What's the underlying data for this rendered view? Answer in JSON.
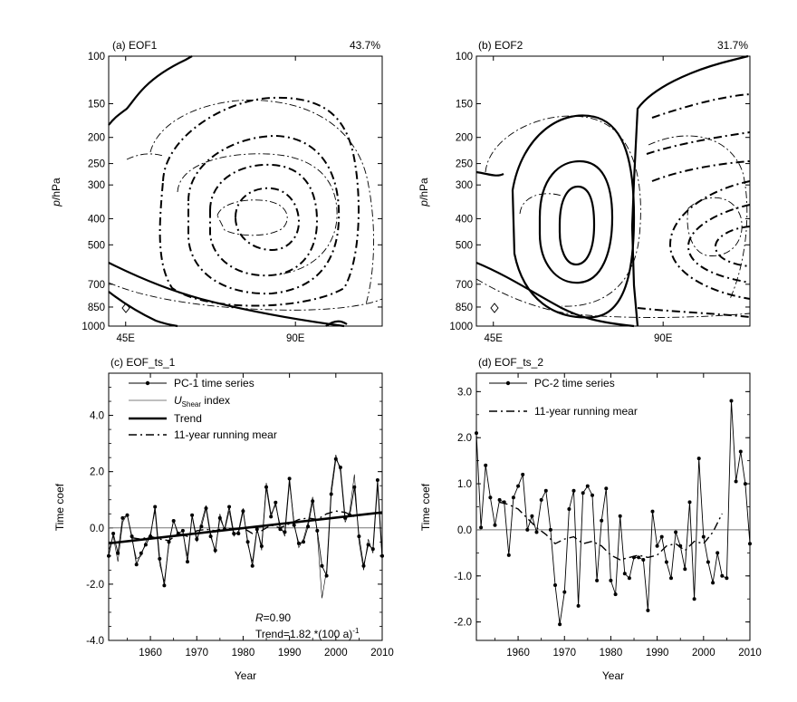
{
  "figure": {
    "panels": {
      "a": {
        "label": "(a)  EOF1",
        "percent": "43.7%",
        "ylabel": "p/hPa"
      },
      "b": {
        "label": "(b)  EOF2",
        "percent": "31.7%",
        "ylabel": "p/hPa"
      },
      "c": {
        "label": "(c)  EOF_ts_1",
        "ylabel": "Time coef",
        "xlabel": "Year",
        "legend": [
          "PC-1 time series",
          "U",
          "Shear",
          " index",
          "Trend",
          "11-year running mear"
        ],
        "ann_r_italic": "R",
        "ann_r_value": "=0.90",
        "ann_trend": "Trend=1.82 *(100 a)",
        "ann_trend_exp": "-1"
      },
      "d": {
        "label": "(d)  EOF_ts_2",
        "ylabel": "Time coef",
        "xlabel": "Year",
        "legend": [
          "PC-2 time series",
          "11-year running mear"
        ]
      }
    }
  },
  "chart_data": [
    {
      "type": "contour",
      "panel": "a",
      "title": "(a)  EOF1",
      "explained_variance": "43.7%",
      "ylabel": "p/hPa",
      "y_scale": "log-pressure",
      "y_ticks": [
        "100",
        "150",
        "200",
        "250",
        "300",
        "400",
        "500",
        "700",
        "850",
        "1000"
      ],
      "x_ticks": [
        "45E",
        "90E"
      ],
      "line_styles": [
        "solid (positive)",
        "dashed (negative)"
      ]
    },
    {
      "type": "contour",
      "panel": "b",
      "title": "(b)  EOF2",
      "explained_variance": "31.7%",
      "ylabel": "p/hPa",
      "y_scale": "log-pressure",
      "y_ticks": [
        "100",
        "150",
        "200",
        "250",
        "300",
        "400",
        "500",
        "700",
        "850",
        "1000"
      ],
      "x_ticks": [
        "45E",
        "90E"
      ],
      "line_styles": [
        "solid (positive)",
        "dashed (negative)"
      ]
    },
    {
      "type": "line",
      "panel": "c",
      "title": "(c)  EOF_ts_1",
      "xlabel": "Year",
      "ylabel": "Time coef",
      "xlim": [
        1951,
        2010
      ],
      "ylim": [
        -4.0,
        5.5
      ],
      "x_ticks": [
        "1960",
        "1970",
        "1980",
        "1990",
        "2000",
        "2010"
      ],
      "y_ticks": [
        "-4.0",
        "-2.0",
        "0.0",
        "2.0",
        "4.0"
      ],
      "x": [
        1951,
        1952,
        1953,
        1954,
        1955,
        1956,
        1957,
        1958,
        1959,
        1960,
        1961,
        1962,
        1963,
        1964,
        1965,
        1966,
        1967,
        1968,
        1969,
        1970,
        1971,
        1972,
        1973,
        1974,
        1975,
        1976,
        1977,
        1978,
        1979,
        1980,
        1981,
        1982,
        1983,
        1984,
        1985,
        1986,
        1987,
        1988,
        1989,
        1990,
        1991,
        1992,
        1993,
        1994,
        1995,
        1996,
        1997,
        1998,
        1999,
        2000,
        2001,
        2002,
        2003,
        2004,
        2005,
        2006,
        2007,
        2008,
        2009,
        2010
      ],
      "series": [
        {
          "name": "PC-1 time series",
          "style": "thin line with dots",
          "values": [
            -1.0,
            -0.2,
            -0.9,
            0.35,
            0.45,
            -0.3,
            -1.3,
            -0.9,
            -0.6,
            -0.3,
            0.75,
            -1.1,
            -2.05,
            -0.5,
            0.25,
            -0.2,
            -0.1,
            -1.2,
            0.45,
            -0.4,
            0.05,
            0.7,
            -0.3,
            -0.8,
            0.35,
            -0.05,
            0.75,
            -0.2,
            -0.2,
            0.6,
            -0.5,
            -1.35,
            -0.05,
            -0.65,
            1.45,
            0.4,
            0.9,
            -0.05,
            -0.15,
            1.75,
            0.1,
            -0.55,
            -0.5,
            0.05,
            0.95,
            -0.1,
            -1.35,
            -1.7,
            1.2,
            2.45,
            2.15,
            0.35,
            0.45,
            1.45,
            -0.3,
            -1.35,
            -0.6,
            -0.75,
            1.7,
            -1.0
          ]
        },
        {
          "name": "U Shear index",
          "style": "thin line",
          "values": [
            -0.8,
            -0.3,
            -1.2,
            0.2,
            0.5,
            -0.4,
            -1.1,
            -1.0,
            -0.5,
            -0.2,
            0.6,
            -1.3,
            -1.9,
            -0.6,
            0.3,
            -0.3,
            -0.2,
            -1.0,
            0.4,
            -0.5,
            0.2,
            0.8,
            -0.2,
            -0.9,
            0.5,
            -0.1,
            0.6,
            -0.3,
            -0.1,
            0.7,
            -0.6,
            -1.2,
            0.0,
            -0.8,
            1.6,
            0.5,
            0.8,
            0.1,
            -0.3,
            1.6,
            0.2,
            -0.7,
            -0.4,
            0.2,
            1.1,
            -0.2,
            -2.5,
            -1.5,
            1.4,
            2.6,
            2.0,
            0.2,
            0.6,
            1.9,
            -0.5,
            -1.5,
            -0.4,
            -0.9,
            1.5,
            -1.2
          ]
        },
        {
          "name": "Trend",
          "style": "thick line",
          "start": [
            1951,
            -0.55
          ],
          "end": [
            2010,
            0.55
          ]
        },
        {
          "name": "11-year running mear",
          "style": "dash-dot",
          "x": [
            1956,
            1958,
            1960,
            1962,
            1964,
            1966,
            1968,
            1970,
            1972,
            1974,
            1976,
            1978,
            1980,
            1982,
            1984,
            1986,
            1988,
            1990,
            1992,
            1994,
            1996,
            1998,
            2000,
            2002,
            2004
          ],
          "values": [
            -0.35,
            -0.4,
            -0.3,
            -0.4,
            -0.45,
            -0.2,
            -0.3,
            -0.1,
            -0.05,
            -0.1,
            0.0,
            -0.05,
            0.0,
            -0.2,
            -0.1,
            0.1,
            0.0,
            0.15,
            0.3,
            0.35,
            0.3,
            0.5,
            0.6,
            0.55,
            0.4
          ]
        }
      ],
      "annotations": [
        "R=0.90",
        "Trend=1.82 *(100 a)-1"
      ]
    },
    {
      "type": "line",
      "panel": "d",
      "title": "(d)  EOF_ts_2",
      "xlabel": "Year",
      "ylabel": "Time coef",
      "xlim": [
        1951,
        2010
      ],
      "ylim": [
        -2.4,
        3.4
      ],
      "x_ticks": [
        "1960",
        "1970",
        "1980",
        "1990",
        "2000",
        "2010"
      ],
      "y_ticks": [
        "-2.0",
        "-1.0",
        "0.0",
        "1.0",
        "2.0",
        "3.0"
      ],
      "x": [
        1951,
        1952,
        1953,
        1954,
        1955,
        1956,
        1957,
        1958,
        1959,
        1960,
        1961,
        1962,
        1963,
        1964,
        1965,
        1966,
        1967,
        1968,
        1969,
        1970,
        1971,
        1972,
        1973,
        1974,
        1975,
        1976,
        1977,
        1978,
        1979,
        1980,
        1981,
        1982,
        1983,
        1984,
        1985,
        1986,
        1987,
        1988,
        1989,
        1990,
        1991,
        1992,
        1993,
        1994,
        1995,
        1996,
        1997,
        1998,
        1999,
        2000,
        2001,
        2002,
        2003,
        2004,
        2005,
        2006,
        2007,
        2008,
        2009,
        2010
      ],
      "series": [
        {
          "name": "PC-2 time series",
          "style": "thin line with dots",
          "values": [
            2.1,
            0.05,
            1.4,
            0.7,
            0.1,
            0.65,
            0.6,
            -0.55,
            0.7,
            0.95,
            1.2,
            0.0,
            0.3,
            -0.05,
            0.65,
            0.85,
            0.0,
            -1.2,
            -2.05,
            -1.35,
            0.45,
            0.85,
            -1.65,
            0.8,
            0.95,
            0.75,
            -1.1,
            0.2,
            0.9,
            -1.1,
            -1.4,
            0.3,
            -0.95,
            -1.05,
            -0.6,
            -0.6,
            -0.65,
            -1.75,
            0.4,
            -0.35,
            -0.15,
            -0.7,
            -1.05,
            -0.05,
            -0.35,
            -0.85,
            0.6,
            -1.5,
            1.55,
            -0.15,
            -0.7,
            -1.15,
            -0.5,
            -1.0,
            -1.05,
            2.8,
            1.05,
            1.7,
            1.0,
            -0.3
          ]
        },
        {
          "name": "11-year running mear",
          "style": "dash-dot",
          "x": [
            1956,
            1958,
            1960,
            1962,
            1964,
            1966,
            1968,
            1970,
            1972,
            1974,
            1976,
            1978,
            1980,
            1982,
            1984,
            1986,
            1988,
            1990,
            1992,
            1994,
            1996,
            1998,
            2000,
            2002,
            2004
          ],
          "values": [
            0.6,
            0.55,
            0.45,
            0.25,
            0.05,
            -0.1,
            -0.3,
            -0.2,
            -0.15,
            -0.3,
            -0.25,
            -0.35,
            -0.55,
            -0.65,
            -0.6,
            -0.55,
            -0.6,
            -0.55,
            -0.35,
            -0.3,
            -0.45,
            -0.25,
            -0.3,
            -0.05,
            0.35
          ]
        }
      ]
    }
  ]
}
